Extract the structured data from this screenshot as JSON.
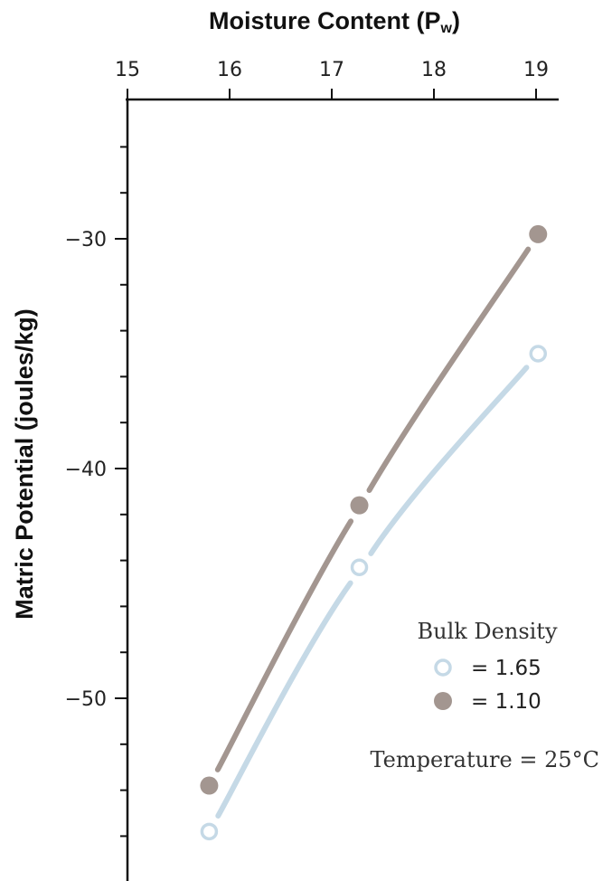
{
  "chart_data": {
    "type": "line",
    "xlabel": "Moisture Content (P",
    "xlabel_sub": "w",
    "xlabel_close": ")",
    "ylabel": "Matric Potential (joules/kg)",
    "x_axis_position": "top",
    "xlim": [
      15,
      19.2
    ],
    "ylim": [
      -56.3,
      -24
    ],
    "x_ticks": [
      15,
      16,
      17,
      18,
      19
    ],
    "y_major_ticks": [
      -30,
      -40,
      -50
    ],
    "y_minor_ticks": [
      -26,
      -28,
      -32,
      -34,
      -36,
      -38,
      -42,
      -44,
      -46,
      -48,
      -52,
      -54,
      -56
    ],
    "x_tick_labels": [
      "15",
      "16",
      "17",
      "18",
      "19"
    ],
    "y_tick_labels": [
      "−30",
      "−40",
      "−50"
    ],
    "grid": false,
    "series": [
      {
        "name": "= 1.65",
        "marker": "open-circle",
        "color": "#c5d9e6",
        "x": [
          15.8,
          17.27,
          19.02
        ],
        "y": [
          -55.8,
          -44.3,
          -35.0
        ]
      },
      {
        "name": "= 1.10",
        "marker": "filled-circle",
        "color": "#a39690",
        "x": [
          15.8,
          17.27,
          19.02
        ],
        "y": [
          -53.8,
          -41.6,
          -29.8
        ]
      }
    ],
    "legend": {
      "title": "Bulk Density",
      "placement": "bottom-right"
    },
    "annotation": "Temperature = 25°C"
  }
}
